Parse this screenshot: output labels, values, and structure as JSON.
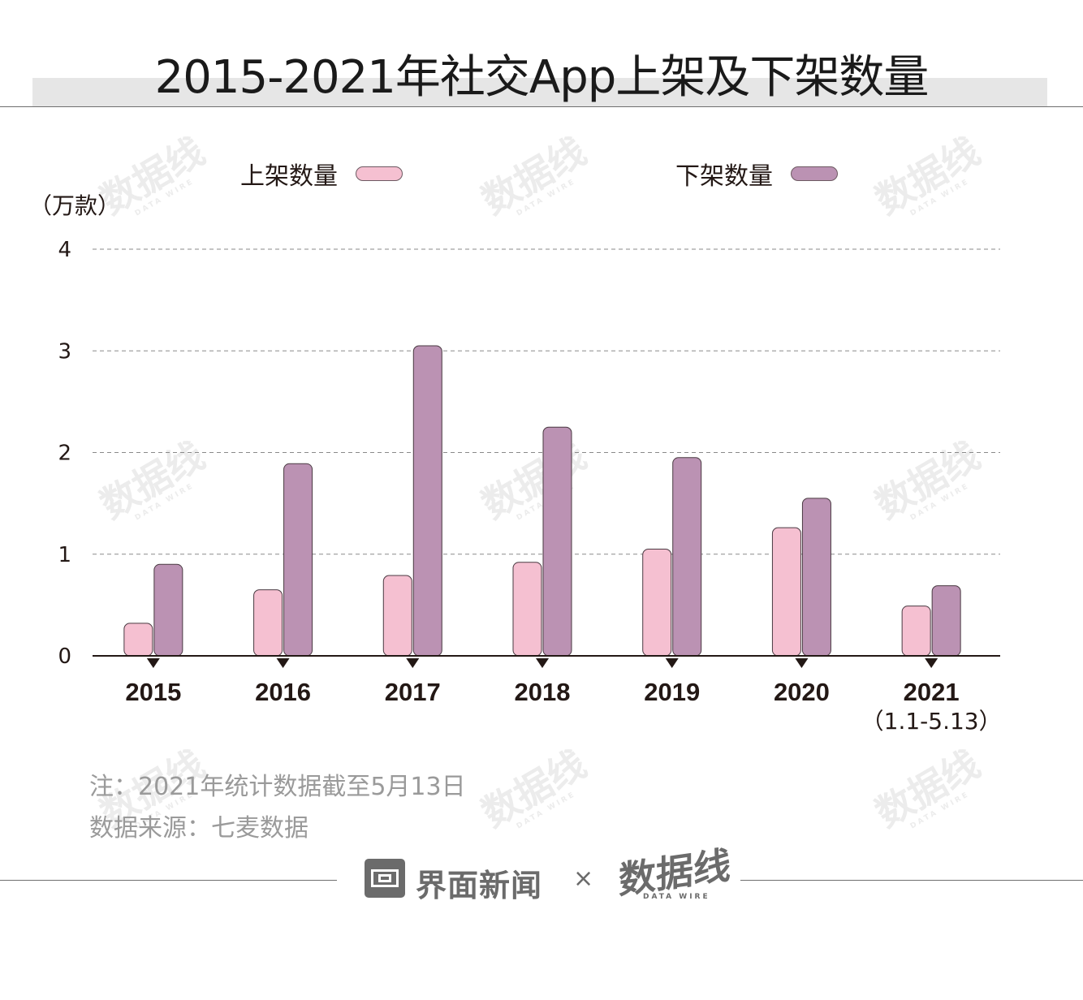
{
  "title": "2015-2021年社交App上架及下架数量",
  "unit": "（万款）",
  "legend": [
    {
      "label": "上架数量",
      "color": "#f5c0d1"
    },
    {
      "label": "下架数量",
      "color": "#bb92b3"
    }
  ],
  "watermark": {
    "main": "数据线",
    "sub": "DATA WIRE"
  },
  "chart_data": {
    "type": "bar",
    "categories": [
      "2015",
      "2016",
      "2017",
      "2018",
      "2019",
      "2020",
      "2021"
    ],
    "category_sublabels": [
      "",
      "",
      "",
      "",
      "",
      "",
      "（1.1-5.13）"
    ],
    "series": [
      {
        "name": "上架数量",
        "color": "#f5c0d1",
        "values": [
          0.32,
          0.65,
          0.79,
          0.92,
          1.05,
          1.26,
          0.49
        ]
      },
      {
        "name": "下架数量",
        "color": "#bb92b3",
        "values": [
          0.9,
          1.89,
          3.05,
          2.25,
          1.95,
          1.55,
          0.69
        ]
      }
    ],
    "ylim": [
      0,
      4
    ],
    "yticks": [
      "0",
      "1",
      "2",
      "3",
      "4"
    ],
    "grid": true,
    "legend_position": "top"
  },
  "notes": [
    "注：2021年统计数据截至5月13日",
    "数据来源：七麦数据"
  ],
  "footer": {
    "brand": "界面新闻",
    "separator": "×",
    "partner": "数据线",
    "partner_sub": "DATA WIRE"
  }
}
